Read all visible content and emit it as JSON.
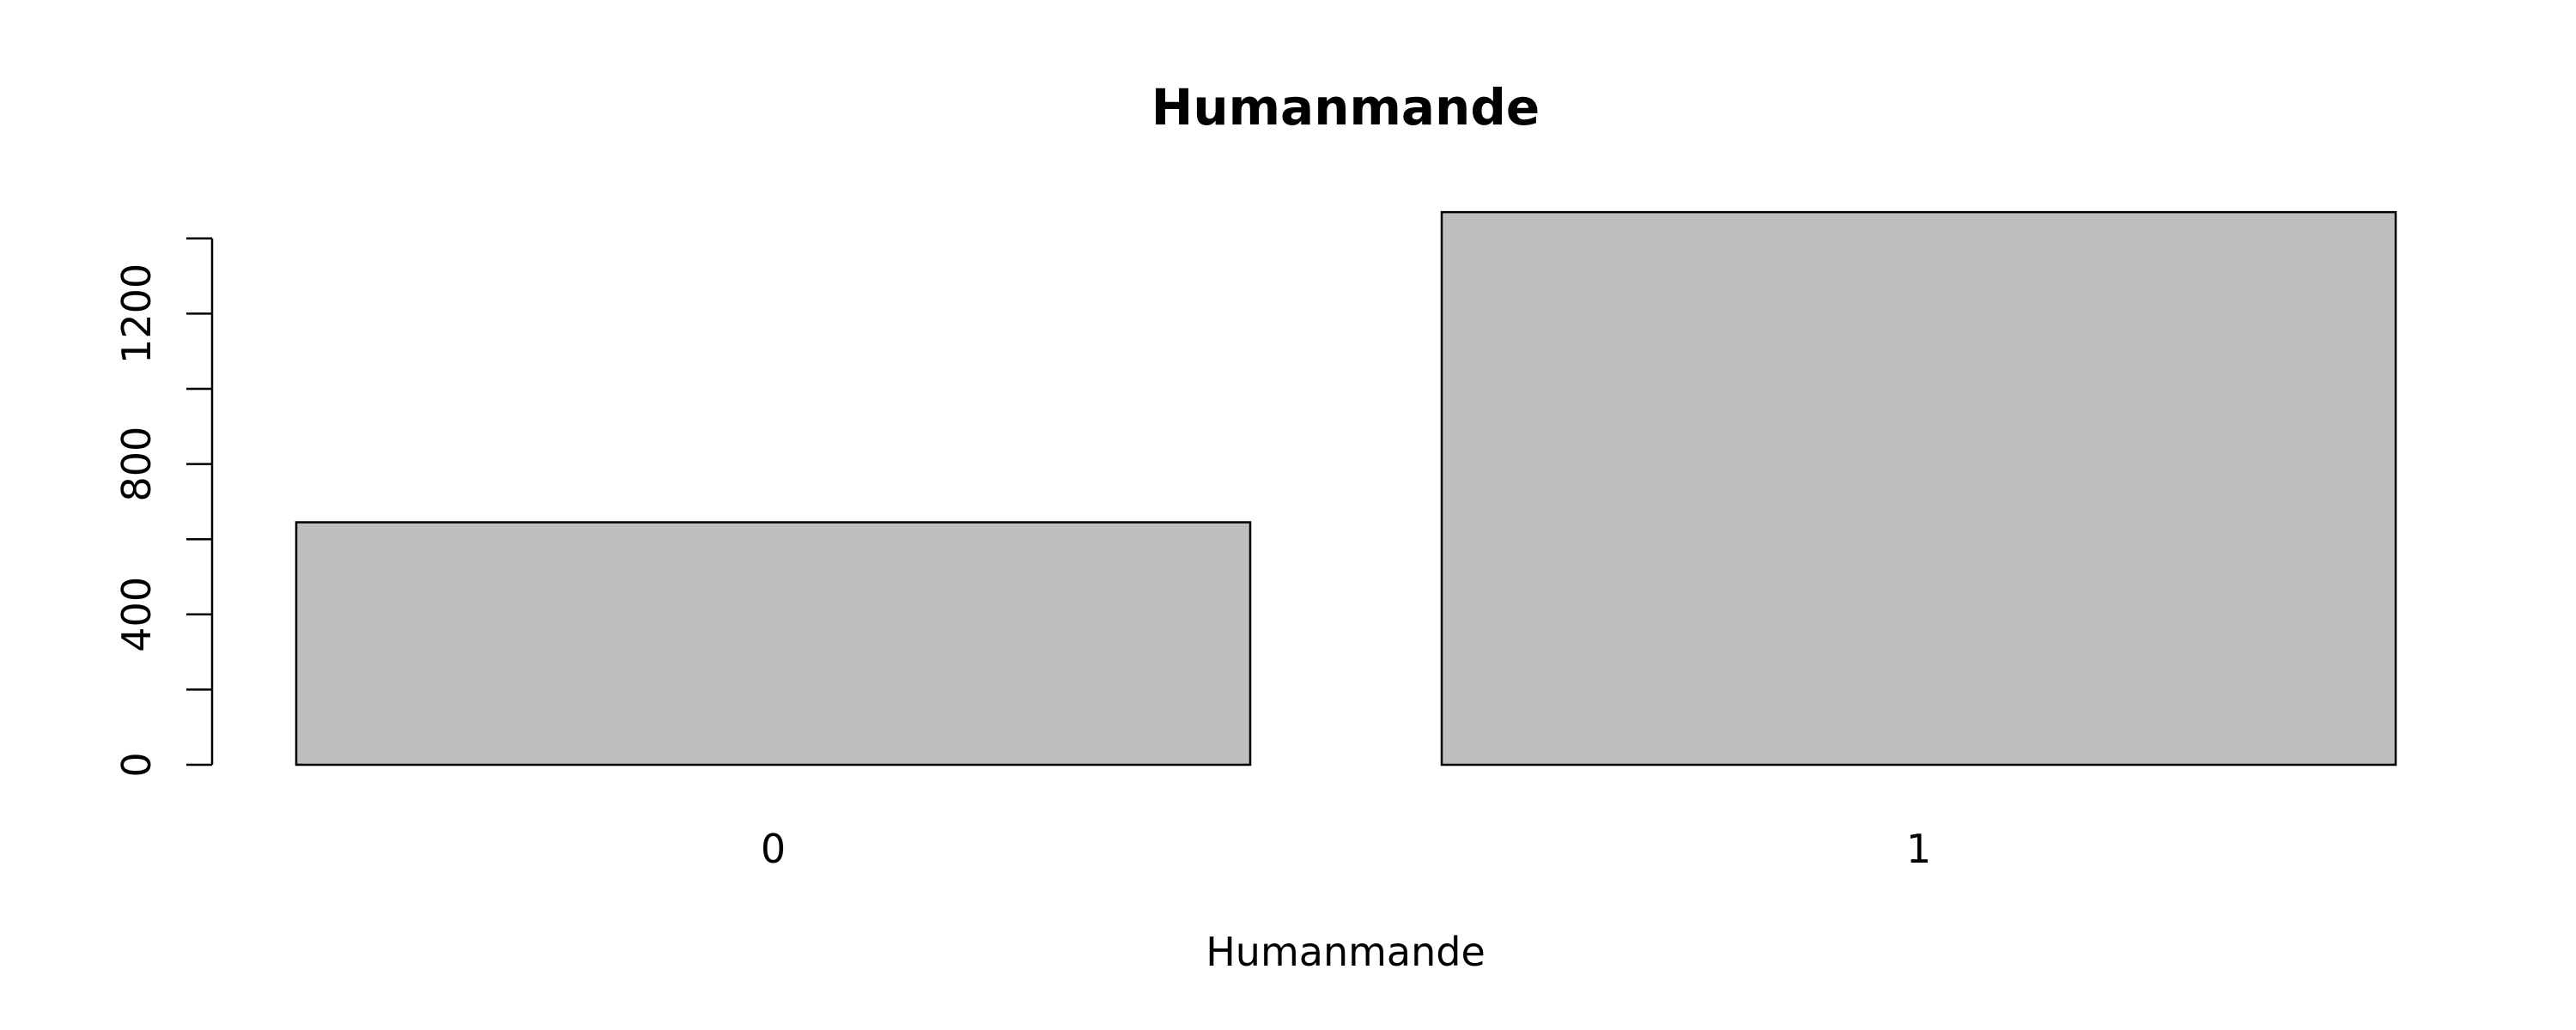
{
  "chart_data": {
    "type": "bar",
    "title": "Humanmande",
    "xlabel": "Humanmande",
    "ylabel": "",
    "categories": [
      "0",
      "1"
    ],
    "values": [
      645,
      1470
    ],
    "ylim": [
      0,
      1400
    ],
    "yticks": [
      0,
      200,
      400,
      600,
      800,
      1000,
      1200,
      1400
    ],
    "ytick_labels": [
      "0",
      "",
      "400",
      "",
      "800",
      "",
      "1200",
      ""
    ],
    "grid": false,
    "bar_color": "#bebebe",
    "bar_border_color": "#000000"
  }
}
